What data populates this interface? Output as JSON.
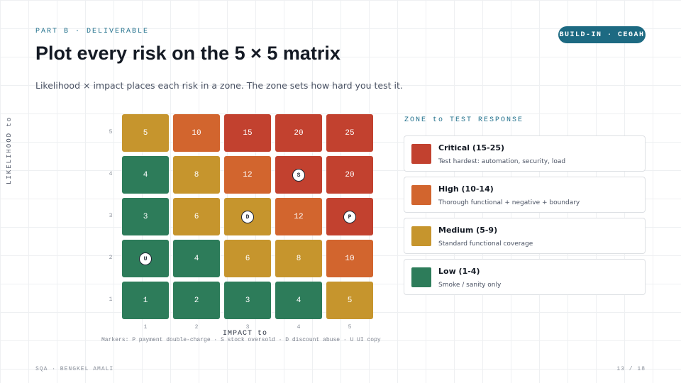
{
  "header": {
    "eyebrow": "PART B · DELIVERABLE",
    "badge": "BUILD-IN · CEGAH",
    "title": "Plot every risk on the 5 × 5 matrix",
    "subtitle": "Likelihood × impact places each risk in a zone. The zone sets how hard you test it."
  },
  "colors": {
    "critical": "#c2412f",
    "high": "#d2652e",
    "medium": "#c6952d",
    "low": "#2d7c5a"
  },
  "matrix": {
    "y_axis_title": "LIKELIHOOD to",
    "x_axis_title": "IMPACT to",
    "likelihood_ticks": [
      "5",
      "4",
      "3",
      "2",
      "1"
    ],
    "impact_ticks": [
      "1",
      "2",
      "3",
      "4",
      "5"
    ],
    "rows": [
      {
        "likelihood": "5",
        "cells": [
          {
            "score": "5",
            "zone": "medium"
          },
          {
            "score": "10",
            "zone": "high"
          },
          {
            "score": "15",
            "zone": "critical"
          },
          {
            "score": "20",
            "zone": "critical"
          },
          {
            "score": "25",
            "zone": "critical"
          }
        ]
      },
      {
        "likelihood": "4",
        "cells": [
          {
            "score": "4",
            "zone": "low"
          },
          {
            "score": "8",
            "zone": "medium"
          },
          {
            "score": "12",
            "zone": "high"
          },
          {
            "score": "",
            "zone": "critical",
            "marker": "S"
          },
          {
            "score": "20",
            "zone": "critical"
          }
        ]
      },
      {
        "likelihood": "3",
        "cells": [
          {
            "score": "3",
            "zone": "low"
          },
          {
            "score": "6",
            "zone": "medium"
          },
          {
            "score": "",
            "zone": "medium",
            "marker": "D"
          },
          {
            "score": "12",
            "zone": "high"
          },
          {
            "score": "",
            "zone": "critical",
            "marker": "P"
          }
        ]
      },
      {
        "likelihood": "2",
        "cells": [
          {
            "score": "",
            "zone": "low",
            "marker": "U"
          },
          {
            "score": "4",
            "zone": "low"
          },
          {
            "score": "6",
            "zone": "medium"
          },
          {
            "score": "8",
            "zone": "medium"
          },
          {
            "score": "10",
            "zone": "high"
          }
        ]
      },
      {
        "likelihood": "1",
        "cells": [
          {
            "score": "1",
            "zone": "low"
          },
          {
            "score": "2",
            "zone": "low"
          },
          {
            "score": "3",
            "zone": "low"
          },
          {
            "score": "4",
            "zone": "low"
          },
          {
            "score": "5",
            "zone": "medium"
          }
        ]
      }
    ],
    "markers_legend": "Markers:  P payment double-charge · S stock oversold · D discount abuse · U UI copy"
  },
  "zones": {
    "heading": "ZONE to TEST RESPONSE",
    "items": [
      {
        "key": "critical",
        "name": "Critical (15-25)",
        "desc": "Test hardest: automation, security, load"
      },
      {
        "key": "high",
        "name": "High (10-14)",
        "desc": "Thorough functional + negative + boundary"
      },
      {
        "key": "medium",
        "name": "Medium (5-9)",
        "desc": "Standard functional coverage"
      },
      {
        "key": "low",
        "name": "Low (1-4)",
        "desc": "Smoke / sanity only"
      }
    ]
  },
  "footer": {
    "left": "SQA · BENGKEL AMALI",
    "right": "13 / 18"
  }
}
